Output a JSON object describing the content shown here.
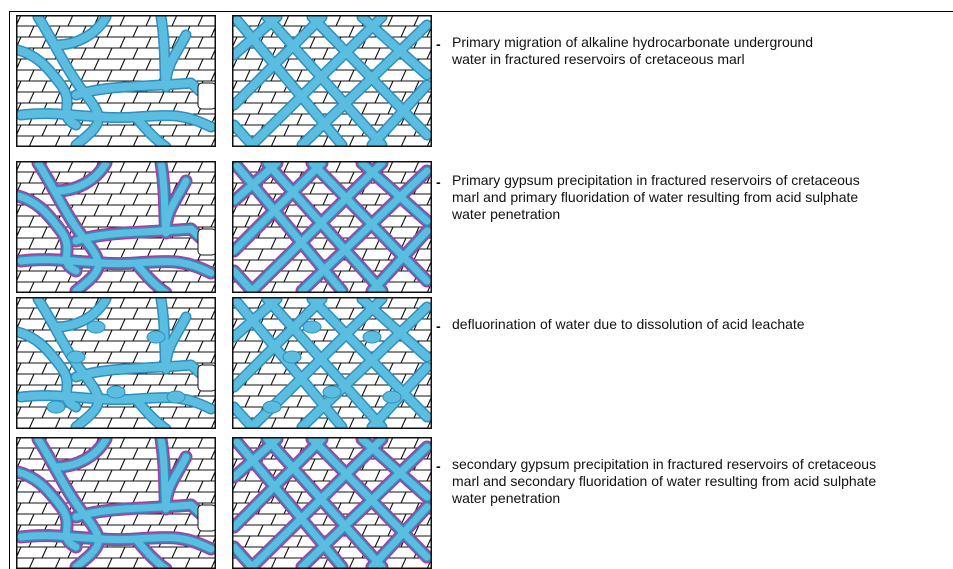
{
  "colors": {
    "water": "#5bbde0",
    "water_edge": "#2f8fbf",
    "gypsum_rim": "#b0399a",
    "brick_line": "#111111"
  },
  "rows": [
    {
      "caption": "Primary migration of alkaline hydrocarbonate underground\nwater in fractured reservoirs of cretaceous marl",
      "rim": false,
      "bubbles": false
    },
    {
      "caption": "Primary gypsum precipitation in fractured reservoirs of cretaceous\nmarl and primary fluoridation of water resulting from acid sulphate\n water penetration",
      "rim": true,
      "bubbles": false
    },
    {
      "caption": "defluorination of water due to dissolution of acid leachate",
      "rim": false,
      "bubbles": true
    },
    {
      "caption": "secondary gypsum precipitation in fractured reservoirs of cretaceous\nmarl and secondary fluoridation of water resulting from acid sulphate\nwater penetration",
      "rim": true,
      "bubbles": false
    }
  ]
}
